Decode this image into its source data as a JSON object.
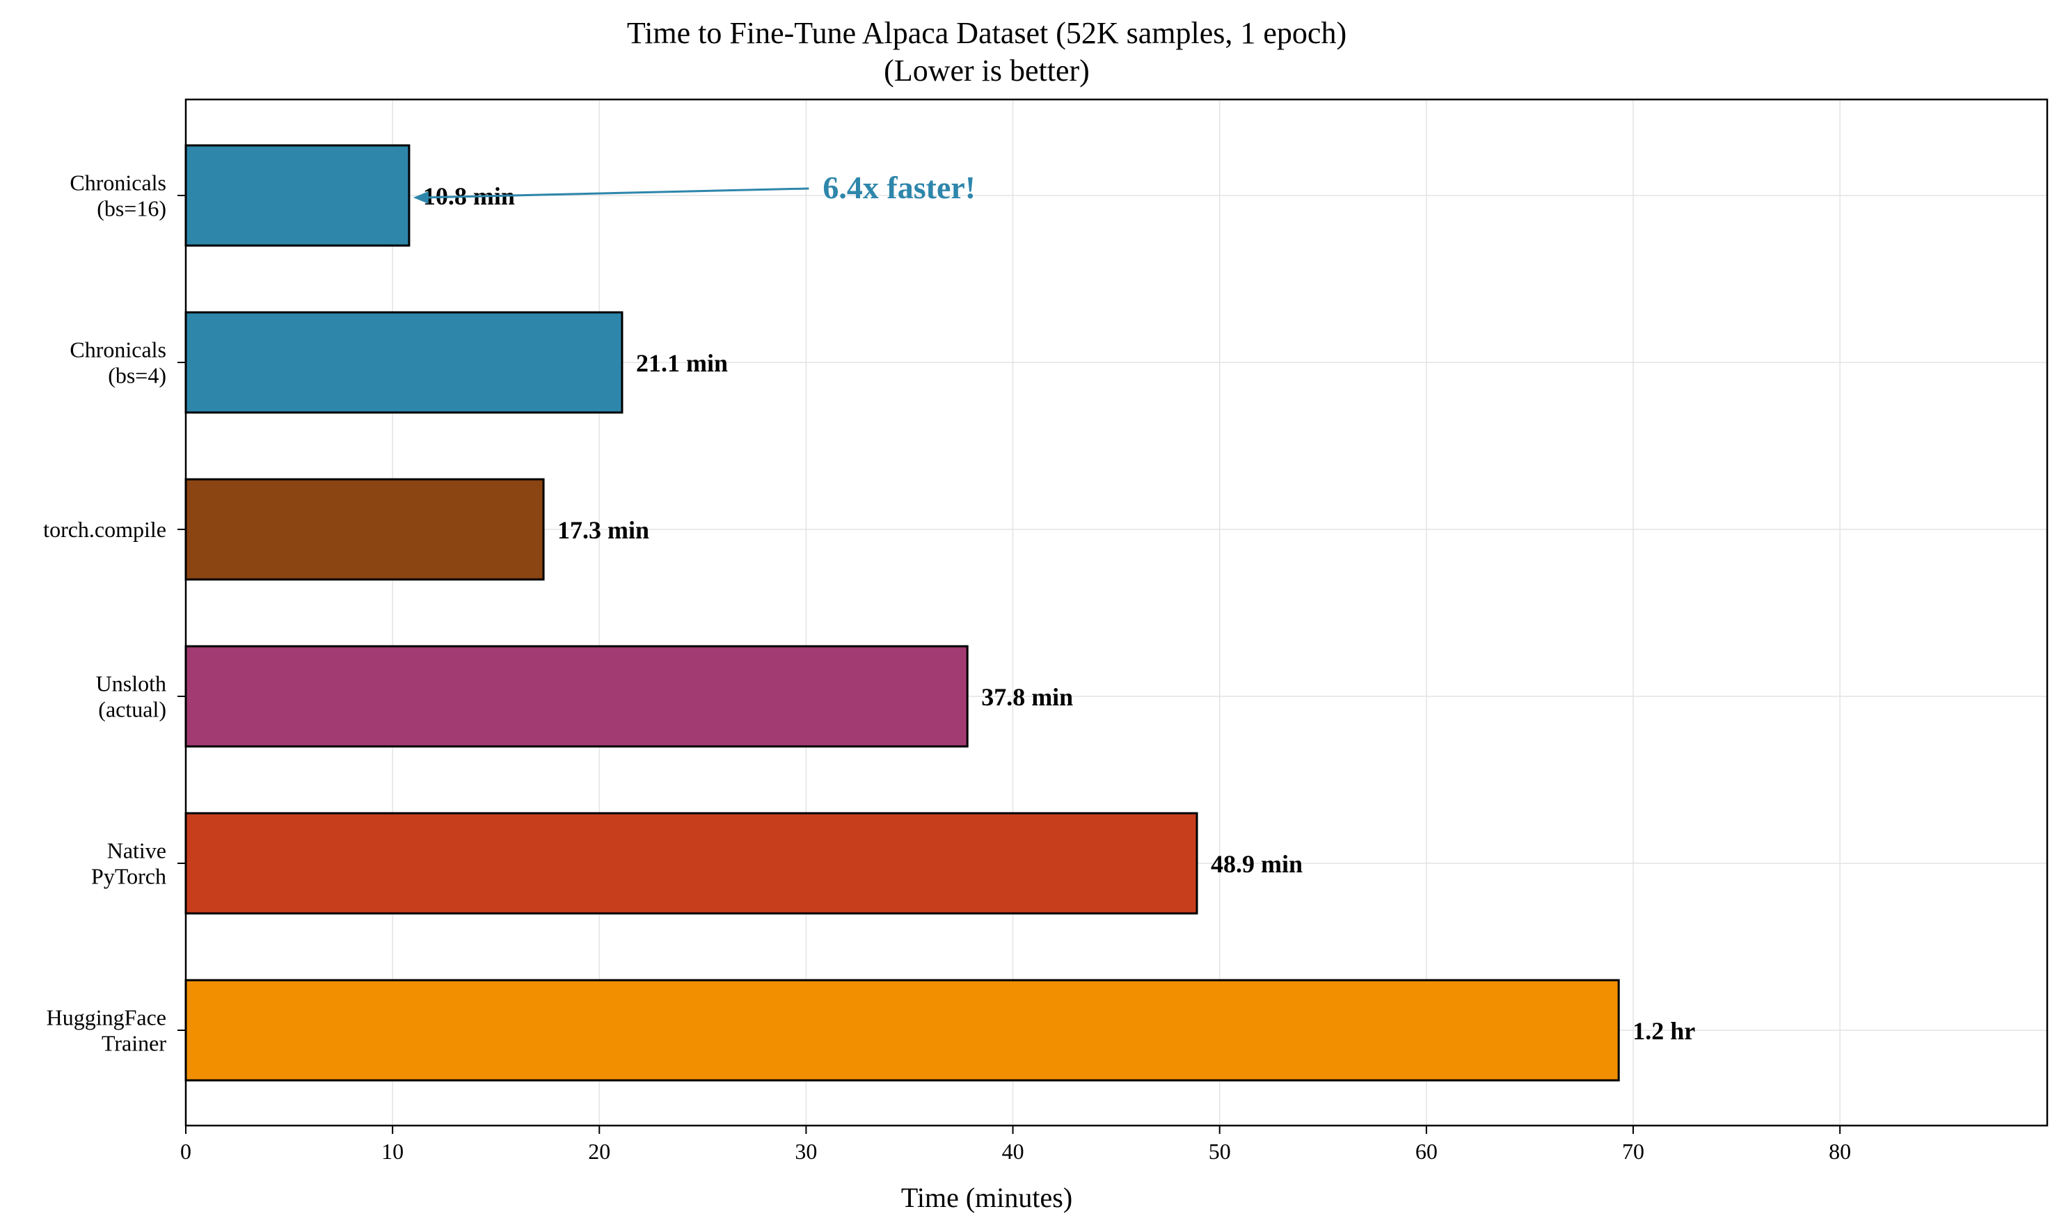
{
  "chart_data": {
    "type": "bar",
    "orientation": "horizontal",
    "title": "Time to Fine-Tune Alpaca Dataset (52K samples, 1 epoch)",
    "subtitle": "(Lower is better)",
    "xlabel": "Time (minutes)",
    "ylabel": "",
    "xlim": [
      0,
      90
    ],
    "xticks": [
      0,
      10,
      20,
      30,
      40,
      50,
      60,
      70,
      80
    ],
    "grid": true,
    "categories": [
      [
        "Chronicals",
        "(bs=16)"
      ],
      [
        "Chronicals",
        "(bs=4)"
      ],
      [
        "torch.compile"
      ],
      [
        "Unsloth",
        "(actual)"
      ],
      [
        "Native",
        "PyTorch"
      ],
      [
        "HuggingFace",
        "Trainer"
      ]
    ],
    "values": [
      10.8,
      21.1,
      17.3,
      37.8,
      48.9,
      69.3
    ],
    "value_labels": [
      "10.8 min",
      "21.1 min",
      "17.3 min",
      "37.8 min",
      "48.9 min",
      "1.2 hr"
    ],
    "colors": [
      "#2E86AB",
      "#2E86AB",
      "#8B4513",
      "#A23B72",
      "#C73E1D",
      "#F18F01"
    ],
    "annotation": {
      "text": "6.4x faster!",
      "color": "#2E86AB",
      "points_to_category_index": 0,
      "arrow_tip_value": 11.0,
      "text_at_value": 30.0
    }
  }
}
